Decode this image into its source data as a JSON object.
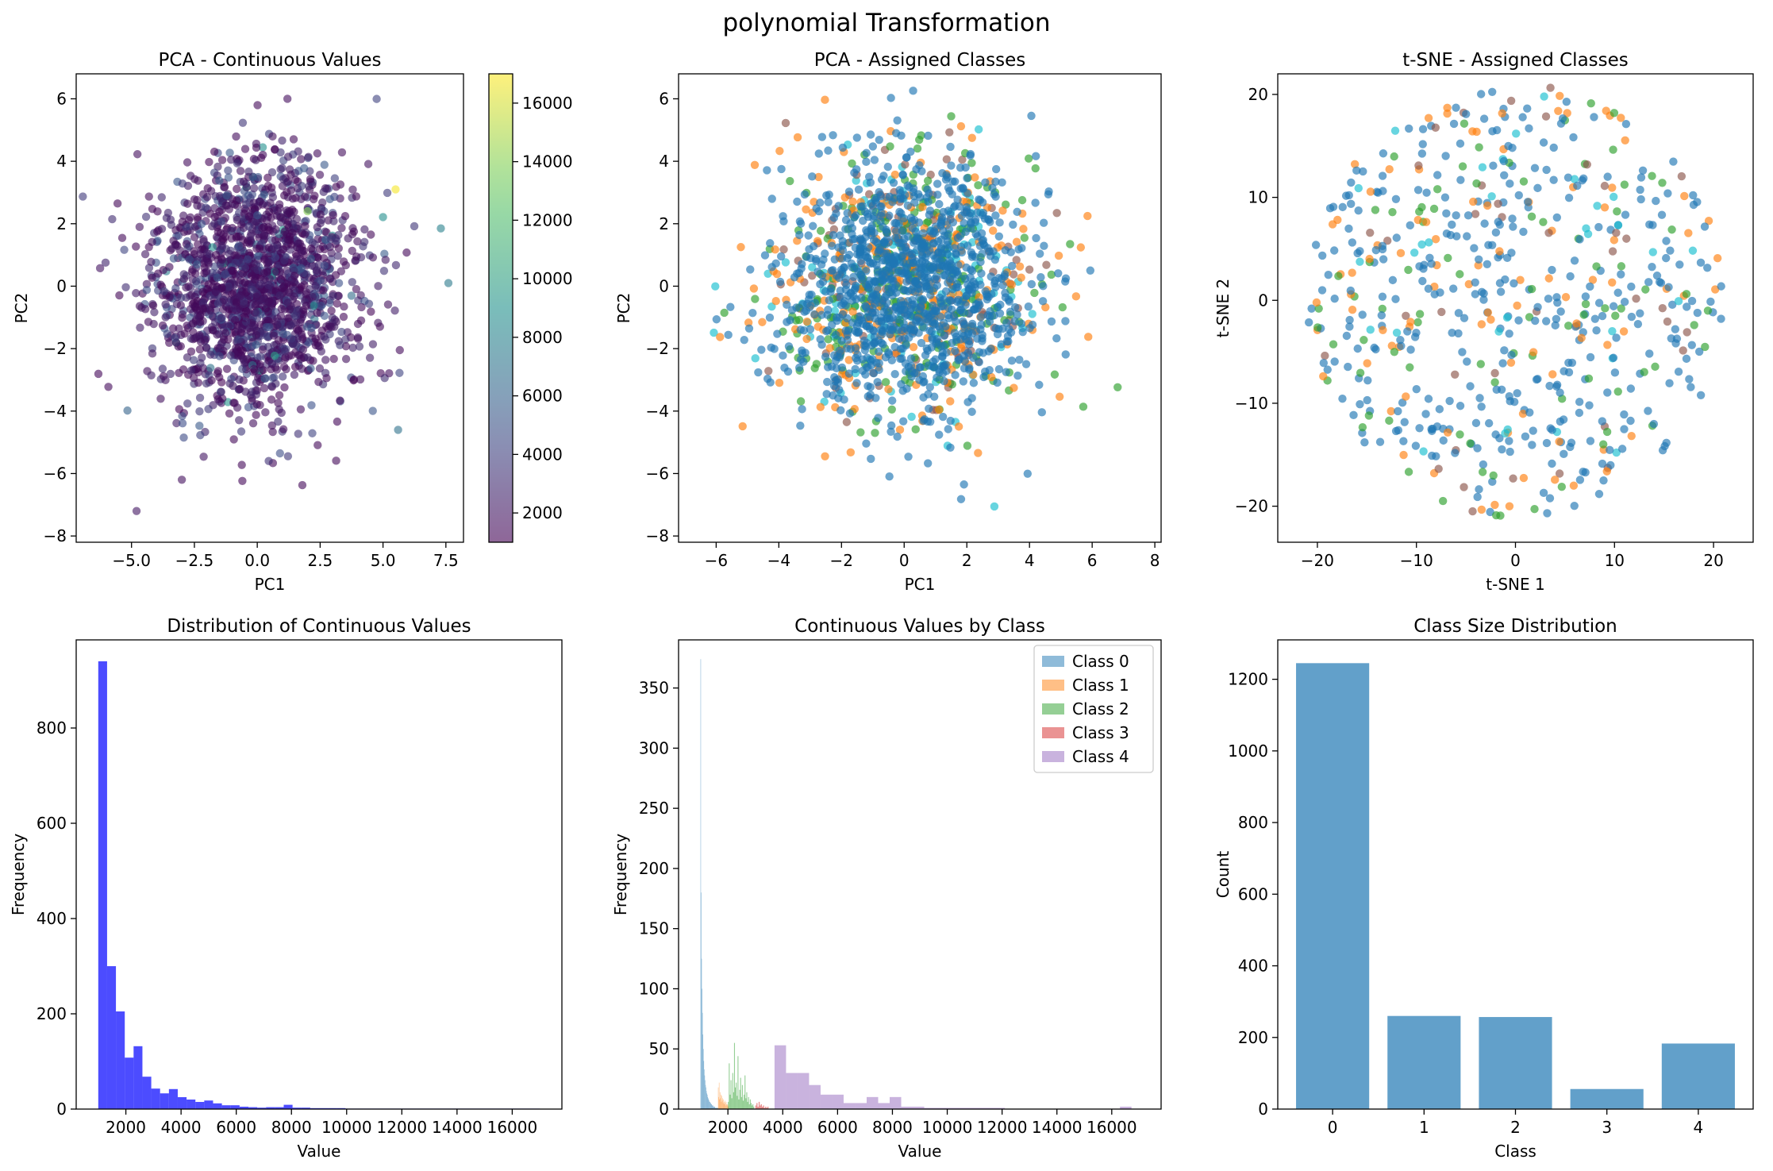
{
  "suptitle": "polynomial Transformation",
  "class_colors": [
    "#1f77b4",
    "#ff7f0e",
    "#2ca02c",
    "#8c564b",
    "#17becf"
  ],
  "legend_colors": [
    "#1f77b4",
    "#ff7f0e",
    "#2ca02c",
    "#d62728",
    "#9467bd"
  ],
  "chart_data": [
    {
      "id": "pca_continuous",
      "type": "scatter",
      "title": "PCA - Continuous Values",
      "xlabel": "PC1",
      "ylabel": "PC2",
      "xlim": [
        -7.2,
        8.2
      ],
      "ylim": [
        -8.2,
        6.8
      ],
      "xticks": [
        -5.0,
        -2.5,
        0.0,
        2.5,
        5.0,
        7.5
      ],
      "xtick_labels": [
        "−5.0",
        "−2.5",
        "0.0",
        "2.5",
        "5.0",
        "7.5"
      ],
      "yticks": [
        -8,
        -6,
        -4,
        -2,
        0,
        2,
        4,
        6
      ],
      "ytick_labels": [
        "−8",
        "−6",
        "−4",
        "−2",
        "0",
        "2",
        "4",
        "6"
      ],
      "point_count": 1800,
      "point_spread": 2.0,
      "highlight_points": [
        {
          "x": 5.5,
          "y": 3.1,
          "value": 16800
        },
        {
          "x": 7.3,
          "y": 1.85,
          "value": 8000
        },
        {
          "x": 7.6,
          "y": 0.1,
          "value": 7500
        },
        {
          "x": 5.6,
          "y": -4.6,
          "value": 7000
        },
        {
          "x": 2.0,
          "y": 2.4,
          "value": 14000
        },
        {
          "x": 1.2,
          "y": 6.0,
          "value": 1500
        },
        {
          "x": -4.8,
          "y": -7.2,
          "value": 2000
        }
      ],
      "colorbar": {
        "min": 1000,
        "max": 17000,
        "ticks": [
          2000,
          4000,
          6000,
          8000,
          10000,
          12000,
          14000,
          16000
        ],
        "tick_labels": [
          "2000",
          "4000",
          "6000",
          "8000",
          "10000",
          "12000",
          "14000",
          "16000"
        ]
      }
    },
    {
      "id": "pca_classes",
      "type": "scatter",
      "title": "PCA - Assigned Classes",
      "xlabel": "PC1",
      "ylabel": "PC2",
      "xlim": [
        -7.2,
        8.2
      ],
      "ylim": [
        -8.2,
        6.8
      ],
      "xticks": [
        -6,
        -4,
        -2,
        0,
        2,
        4,
        6,
        8
      ],
      "xtick_labels": [
        "−6",
        "−4",
        "−2",
        "0",
        "2",
        "4",
        "6",
        "8"
      ],
      "yticks": [
        -8,
        -6,
        -4,
        -2,
        0,
        2,
        4,
        6
      ],
      "ytick_labels": [
        "−8",
        "−6",
        "−4",
        "−2",
        "0",
        "2",
        "4",
        "6"
      ],
      "point_count": 1800,
      "point_spread": 2.0,
      "class_weights": [
        0.62,
        0.13,
        0.13,
        0.06,
        0.06
      ]
    },
    {
      "id": "tsne_classes",
      "type": "scatter",
      "title": "t-SNE - Assigned Classes",
      "xlabel": "t-SNE 1",
      "ylabel": "t-SNE 2",
      "xlim": [
        -24,
        24
      ],
      "ylim": [
        -23.5,
        22
      ],
      "xticks": [
        -20,
        -10,
        0,
        10,
        20
      ],
      "xtick_labels": [
        "−20",
        "−10",
        "0",
        "10",
        "20"
      ],
      "yticks": [
        -20,
        -10,
        0,
        10,
        20
      ],
      "ytick_labels": [
        "−20",
        "−10",
        "0",
        "10",
        "20"
      ],
      "point_count": 620,
      "disc_radius": 21,
      "class_weights": [
        0.62,
        0.13,
        0.13,
        0.06,
        0.06
      ]
    },
    {
      "id": "value_hist",
      "type": "bar",
      "title": "Distribution of Continuous Values",
      "xlabel": "Value",
      "ylabel": "Frequency",
      "xlim": [
        200,
        17800
      ],
      "ylim": [
        0,
        985
      ],
      "color": "#0000ff",
      "bin_start": 1000,
      "bin_width": 320,
      "values": [
        940,
        300,
        205,
        108,
        132,
        68,
        43,
        33,
        42,
        25,
        20,
        15,
        18,
        12,
        8,
        8,
        5,
        4,
        3,
        4,
        4,
        9,
        3,
        3,
        2,
        2,
        2,
        2,
        1,
        1,
        1,
        1,
        1,
        1,
        1,
        1,
        1,
        1,
        1,
        1,
        1,
        1,
        1,
        1,
        1,
        1,
        1,
        1,
        1,
        1
      ],
      "xticks": [
        2000,
        4000,
        6000,
        8000,
        10000,
        12000,
        14000,
        16000
      ],
      "xtick_labels": [
        "2000",
        "4000",
        "6000",
        "8000",
        "10000",
        "12000",
        "14000",
        "16000"
      ],
      "yticks": [
        0,
        200,
        400,
        600,
        800
      ],
      "ytick_labels": [
        "0",
        "200",
        "400",
        "600",
        "800"
      ]
    },
    {
      "id": "values_by_class",
      "type": "bar",
      "title": "Continuous Values by Class",
      "xlabel": "Value",
      "ylabel": "Frequency",
      "xlim": [
        200,
        17800
      ],
      "ylim": [
        0,
        390
      ],
      "xticks": [
        2000,
        4000,
        6000,
        8000,
        10000,
        12000,
        14000,
        16000
      ],
      "xtick_labels": [
        "2000",
        "4000",
        "6000",
        "8000",
        "10000",
        "12000",
        "14000",
        "16000"
      ],
      "yticks": [
        0,
        50,
        100,
        150,
        200,
        250,
        300,
        350
      ],
      "ytick_labels": [
        "0",
        "50",
        "100",
        "150",
        "200",
        "250",
        "300",
        "350"
      ],
      "legend": [
        "Class 0",
        "Class 1",
        "Class 2",
        "Class 3",
        "Class 4"
      ],
      "series": [
        {
          "name": "Class 0",
          "bin_start": 1000,
          "bin_width": 16,
          "values": [
            374,
            180,
            125,
            100,
            80,
            62,
            50,
            40,
            33,
            28,
            24,
            20,
            18,
            15,
            13,
            12,
            10,
            9,
            8,
            7,
            6,
            6,
            5,
            5,
            4,
            4,
            3,
            3,
            3,
            2,
            2,
            2,
            2,
            1,
            1,
            1,
            1,
            1,
            1,
            1
          ]
        },
        {
          "name": "Class 1",
          "bin_start": 1640,
          "bin_width": 16,
          "values": [
            18,
            10,
            22,
            8,
            14,
            9,
            12,
            6,
            11,
            7,
            9,
            5,
            8,
            6,
            4,
            7,
            5,
            3,
            6,
            4,
            3,
            4,
            2,
            3
          ]
        },
        {
          "name": "Class 2",
          "bin_start": 2000,
          "bin_width": 32,
          "values": [
            6,
            38,
            12,
            24,
            9,
            30,
            14,
            55,
            18,
            22,
            11,
            44,
            8,
            16,
            26,
            10,
            20,
            7,
            12,
            28,
            9,
            14,
            6,
            10,
            4,
            8,
            5,
            3,
            4,
            2
          ]
        },
        {
          "name": "Class 3",
          "bin_start": 3000,
          "bin_width": 40,
          "values": [
            3,
            5,
            2,
            6,
            3,
            4,
            2,
            3,
            1,
            2,
            1,
            2
          ]
        },
        {
          "name": "Class 4",
          "bin_start": 3700,
          "bin_width": 420,
          "values": [
            53,
            30,
            30,
            20,
            12,
            12,
            5,
            5,
            10,
            5,
            10,
            2,
            2,
            1,
            1,
            1,
            1,
            1,
            1,
            1,
            0,
            0,
            0,
            0,
            0,
            0,
            0,
            0,
            0,
            0,
            2
          ]
        }
      ]
    },
    {
      "id": "class_sizes",
      "type": "bar",
      "title": "Class Size Distribution",
      "xlabel": "Class",
      "ylabel": "Count",
      "categories": [
        "0",
        "1",
        "2",
        "3",
        "4"
      ],
      "values": [
        1245,
        260,
        257,
        56,
        183
      ],
      "color": "#1f77b4",
      "ylim": [
        0,
        1310
      ],
      "yticks": [
        0,
        200,
        400,
        600,
        800,
        1000,
        1200
      ],
      "ytick_labels": [
        "0",
        "200",
        "400",
        "600",
        "800",
        "1000",
        "1200"
      ]
    }
  ]
}
